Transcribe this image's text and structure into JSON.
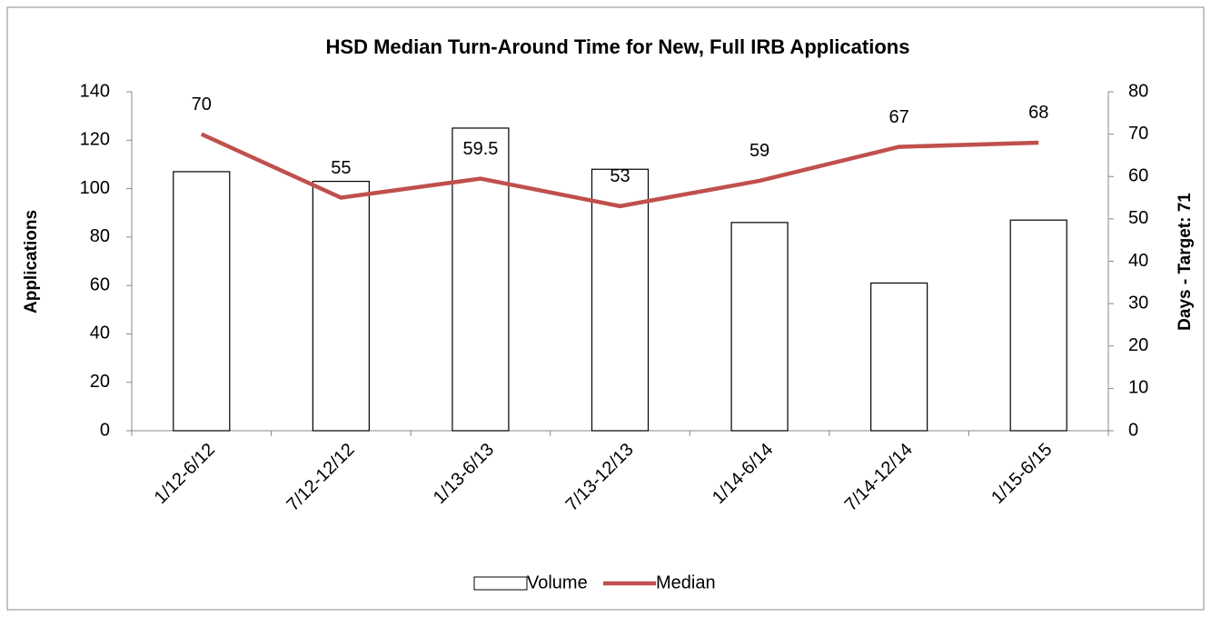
{
  "chart_data": {
    "type": "combo",
    "title": "HSD Median Turn-Around Time for New, Full IRB Applications",
    "ylabel": "Applications",
    "y2label": "Days - Target: 71",
    "categories": [
      "1/12-6/12",
      "7/12-12/12",
      "1/13-6/13",
      "7/13-12/13",
      "1/14-6/14",
      "7/14-12/14",
      "1/15-6/15"
    ],
    "series": [
      {
        "name": "Volume",
        "type": "bar",
        "color": "#ffffff",
        "values": [
          107,
          103,
          125,
          108,
          86,
          61,
          87
        ]
      },
      {
        "name": "Median",
        "type": "line",
        "axis": "y2",
        "color": "#c0504d",
        "values": [
          70,
          55,
          59.5,
          53,
          59,
          67,
          68
        ]
      }
    ],
    "ylim": [
      0,
      140
    ],
    "yticks": [
      0,
      20,
      40,
      60,
      80,
      100,
      120,
      140
    ],
    "y2lim": [
      0,
      80
    ],
    "y2ticks": [
      0,
      10,
      20,
      30,
      40,
      50,
      60,
      70,
      80
    ],
    "legend": "bottom"
  }
}
